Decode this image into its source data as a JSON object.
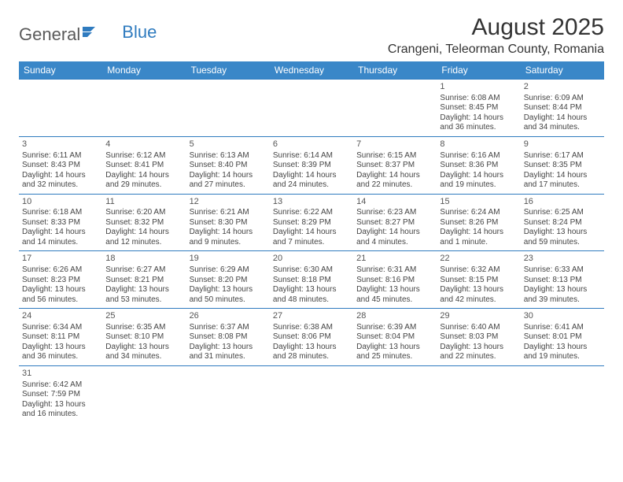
{
  "logo": {
    "part1": "General",
    "part2": "Blue"
  },
  "title": "August 2025",
  "location": "Crangeni, Teleorman County, Romania",
  "weekdays": [
    "Sunday",
    "Monday",
    "Tuesday",
    "Wednesday",
    "Thursday",
    "Friday",
    "Saturday"
  ],
  "colors": {
    "header_bg": "#3a87c8",
    "header_text": "#ffffff",
    "border": "#2f7bbf",
    "logo_blue": "#2f7bbf",
    "text": "#444444",
    "background": "#ffffff"
  },
  "typography": {
    "title_fontsize": 30,
    "location_fontsize": 16,
    "weekday_fontsize": 12,
    "cell_fontsize": 10,
    "logo_fontsize": 22
  },
  "layout": {
    "columns": 7,
    "rows": 6,
    "first_day_column_index": 5
  },
  "days": [
    {
      "n": 1,
      "sunrise": "6:08 AM",
      "sunset": "8:45 PM",
      "daylight": "14 hours and 36 minutes."
    },
    {
      "n": 2,
      "sunrise": "6:09 AM",
      "sunset": "8:44 PM",
      "daylight": "14 hours and 34 minutes."
    },
    {
      "n": 3,
      "sunrise": "6:11 AM",
      "sunset": "8:43 PM",
      "daylight": "14 hours and 32 minutes."
    },
    {
      "n": 4,
      "sunrise": "6:12 AM",
      "sunset": "8:41 PM",
      "daylight": "14 hours and 29 minutes."
    },
    {
      "n": 5,
      "sunrise": "6:13 AM",
      "sunset": "8:40 PM",
      "daylight": "14 hours and 27 minutes."
    },
    {
      "n": 6,
      "sunrise": "6:14 AM",
      "sunset": "8:39 PM",
      "daylight": "14 hours and 24 minutes."
    },
    {
      "n": 7,
      "sunrise": "6:15 AM",
      "sunset": "8:37 PM",
      "daylight": "14 hours and 22 minutes."
    },
    {
      "n": 8,
      "sunrise": "6:16 AM",
      "sunset": "8:36 PM",
      "daylight": "14 hours and 19 minutes."
    },
    {
      "n": 9,
      "sunrise": "6:17 AM",
      "sunset": "8:35 PM",
      "daylight": "14 hours and 17 minutes."
    },
    {
      "n": 10,
      "sunrise": "6:18 AM",
      "sunset": "8:33 PM",
      "daylight": "14 hours and 14 minutes."
    },
    {
      "n": 11,
      "sunrise": "6:20 AM",
      "sunset": "8:32 PM",
      "daylight": "14 hours and 12 minutes."
    },
    {
      "n": 12,
      "sunrise": "6:21 AM",
      "sunset": "8:30 PM",
      "daylight": "14 hours and 9 minutes."
    },
    {
      "n": 13,
      "sunrise": "6:22 AM",
      "sunset": "8:29 PM",
      "daylight": "14 hours and 7 minutes."
    },
    {
      "n": 14,
      "sunrise": "6:23 AM",
      "sunset": "8:27 PM",
      "daylight": "14 hours and 4 minutes."
    },
    {
      "n": 15,
      "sunrise": "6:24 AM",
      "sunset": "8:26 PM",
      "daylight": "14 hours and 1 minute."
    },
    {
      "n": 16,
      "sunrise": "6:25 AM",
      "sunset": "8:24 PM",
      "daylight": "13 hours and 59 minutes."
    },
    {
      "n": 17,
      "sunrise": "6:26 AM",
      "sunset": "8:23 PM",
      "daylight": "13 hours and 56 minutes."
    },
    {
      "n": 18,
      "sunrise": "6:27 AM",
      "sunset": "8:21 PM",
      "daylight": "13 hours and 53 minutes."
    },
    {
      "n": 19,
      "sunrise": "6:29 AM",
      "sunset": "8:20 PM",
      "daylight": "13 hours and 50 minutes."
    },
    {
      "n": 20,
      "sunrise": "6:30 AM",
      "sunset": "8:18 PM",
      "daylight": "13 hours and 48 minutes."
    },
    {
      "n": 21,
      "sunrise": "6:31 AM",
      "sunset": "8:16 PM",
      "daylight": "13 hours and 45 minutes."
    },
    {
      "n": 22,
      "sunrise": "6:32 AM",
      "sunset": "8:15 PM",
      "daylight": "13 hours and 42 minutes."
    },
    {
      "n": 23,
      "sunrise": "6:33 AM",
      "sunset": "8:13 PM",
      "daylight": "13 hours and 39 minutes."
    },
    {
      "n": 24,
      "sunrise": "6:34 AM",
      "sunset": "8:11 PM",
      "daylight": "13 hours and 36 minutes."
    },
    {
      "n": 25,
      "sunrise": "6:35 AM",
      "sunset": "8:10 PM",
      "daylight": "13 hours and 34 minutes."
    },
    {
      "n": 26,
      "sunrise": "6:37 AM",
      "sunset": "8:08 PM",
      "daylight": "13 hours and 31 minutes."
    },
    {
      "n": 27,
      "sunrise": "6:38 AM",
      "sunset": "8:06 PM",
      "daylight": "13 hours and 28 minutes."
    },
    {
      "n": 28,
      "sunrise": "6:39 AM",
      "sunset": "8:04 PM",
      "daylight": "13 hours and 25 minutes."
    },
    {
      "n": 29,
      "sunrise": "6:40 AM",
      "sunset": "8:03 PM",
      "daylight": "13 hours and 22 minutes."
    },
    {
      "n": 30,
      "sunrise": "6:41 AM",
      "sunset": "8:01 PM",
      "daylight": "13 hours and 19 minutes."
    },
    {
      "n": 31,
      "sunrise": "6:42 AM",
      "sunset": "7:59 PM",
      "daylight": "13 hours and 16 minutes."
    }
  ],
  "labels": {
    "sunrise": "Sunrise:",
    "sunset": "Sunset:",
    "daylight": "Daylight:"
  }
}
